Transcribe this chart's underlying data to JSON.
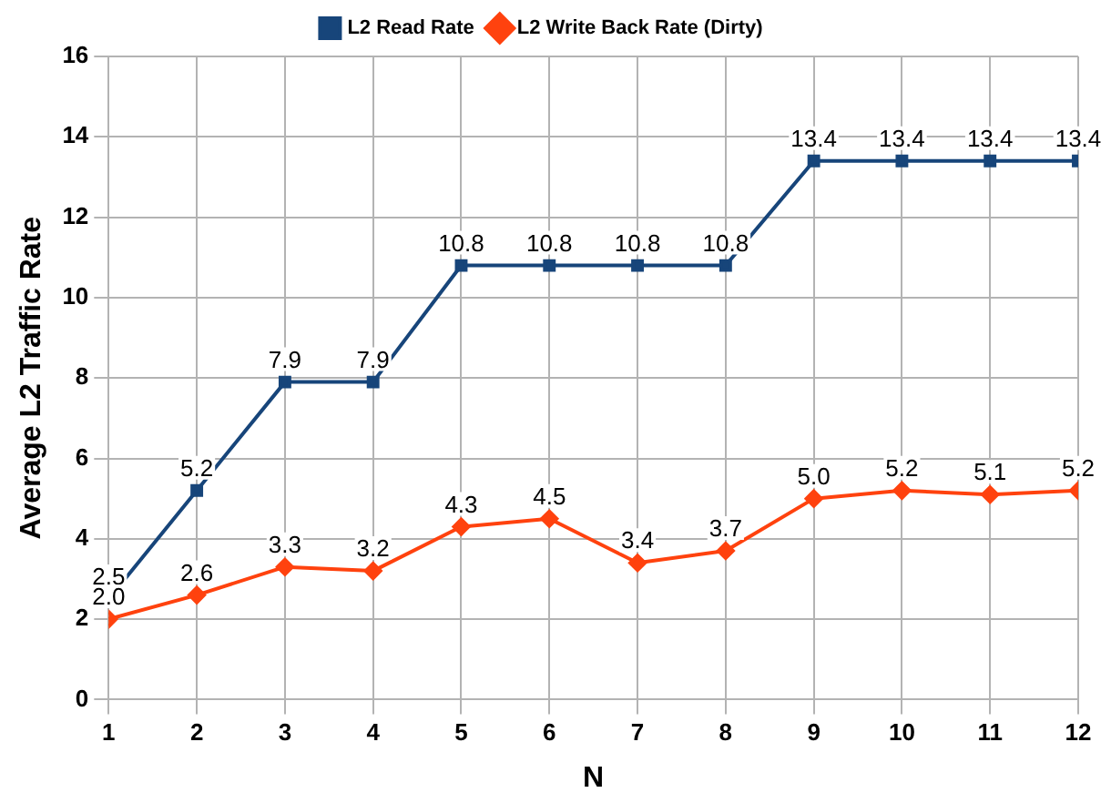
{
  "chart_data": {
    "type": "line",
    "xlabel": "N",
    "ylabel": "Average L2 Traffic Rate",
    "x": [
      1,
      2,
      3,
      4,
      5,
      6,
      7,
      8,
      9,
      10,
      11,
      12
    ],
    "xlim": [
      1,
      12
    ],
    "xticks": [
      1,
      2,
      3,
      4,
      5,
      6,
      7,
      8,
      9,
      10,
      11,
      12
    ],
    "ylim": [
      0,
      16
    ],
    "yticks": [
      0,
      2,
      4,
      6,
      8,
      10,
      12,
      14,
      16
    ],
    "grid": true,
    "legend": "top",
    "line_style": "solid",
    "series": [
      {
        "name": "L2 Read Rate",
        "color": "#17457a",
        "marker": "square",
        "values": [
          2.5,
          5.2,
          7.9,
          7.9,
          10.8,
          10.8,
          10.8,
          10.8,
          13.4,
          13.4,
          13.4,
          13.4
        ],
        "value_labels": [
          "2.5",
          "5.2",
          "7.9",
          "7.9",
          "10.8",
          "10.8",
          "10.8",
          "10.8",
          "13.4",
          "13.4",
          "13.4",
          "13.4"
        ]
      },
      {
        "name": "L2 Write Back Rate (Dirty)",
        "color": "#ff420e",
        "marker": "diamond",
        "values": [
          2.0,
          2.6,
          3.3,
          3.2,
          4.3,
          4.5,
          3.4,
          3.7,
          5.0,
          5.2,
          5.1,
          5.2
        ],
        "value_labels": [
          "2.0",
          "2.6",
          "3.3",
          "3.2",
          "4.3",
          "4.5",
          "3.4",
          "3.7",
          "5.0",
          "5.2",
          "5.1",
          "5.2"
        ]
      }
    ]
  }
}
